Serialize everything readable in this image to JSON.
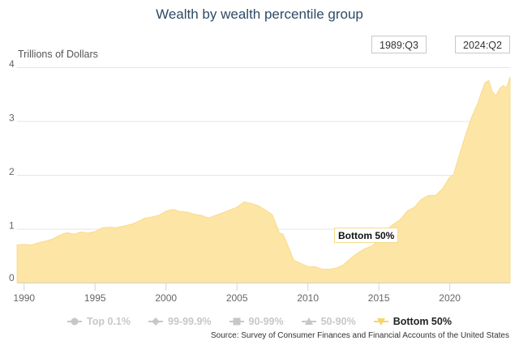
{
  "title": "Wealth by wealth percentile group",
  "range_selector": {
    "start": "1989:Q3",
    "end": "2024:Q2"
  },
  "annotation": "Bottom 50%",
  "legend": [
    {
      "label": "Top 0.1%",
      "icon": "circle-marker-icon",
      "active": false
    },
    {
      "label": "99-99.9%",
      "icon": "diamond-marker-icon",
      "active": false
    },
    {
      "label": "90-99%",
      "icon": "square-marker-icon",
      "active": false
    },
    {
      "label": "50-90%",
      "icon": "triangle-marker-icon",
      "active": false
    },
    {
      "label": "Bottom 50%",
      "icon": "triangle-down-marker-icon",
      "active": true
    }
  ],
  "source": "Source: Survey of Consumer Finances and Financial Accounts of the United States",
  "colors": {
    "area": "#fde5a6",
    "area_line": "#f9d77f",
    "grid": "#e6e6e6",
    "title": "#2e4a66",
    "inactive": "#c7c7c7"
  },
  "chart_data": {
    "type": "area",
    "title": "Wealth by wealth percentile group",
    "xlabel": "",
    "ylabel": "Trillions of Dollars",
    "ylim": [
      0,
      4
    ],
    "xlim": [
      1989.5,
      2024.25
    ],
    "yticks": [
      0,
      1,
      2,
      3,
      4
    ],
    "xticks": [
      1990,
      1995,
      2000,
      2005,
      2010,
      2015,
      2020
    ],
    "grid": true,
    "legend_position": "bottom",
    "series": [
      {
        "name": "Bottom 50%",
        "x": [
          1989.5,
          1990.0,
          1990.5,
          1991.0,
          1991.5,
          1992.0,
          1992.5,
          1993.0,
          1993.5,
          1994.0,
          1994.5,
          1995.0,
          1995.5,
          1996.0,
          1996.5,
          1997.0,
          1997.5,
          1998.0,
          1998.5,
          1999.0,
          1999.5,
          2000.0,
          2000.5,
          2001.0,
          2001.5,
          2002.0,
          2002.5,
          2003.0,
          2003.5,
          2004.0,
          2004.5,
          2005.0,
          2005.5,
          2006.0,
          2006.5,
          2007.0,
          2007.5,
          2008.0,
          2008.25,
          2008.5,
          2009.0,
          2009.5,
          2010.0,
          2010.5,
          2011.0,
          2011.5,
          2012.0,
          2012.5,
          2013.0,
          2013.5,
          2014.0,
          2014.5,
          2015.0,
          2015.5,
          2016.0,
          2016.5,
          2017.0,
          2017.5,
          2018.0,
          2018.5,
          2019.0,
          2019.5,
          2020.0,
          2020.25,
          2020.5,
          2021.0,
          2021.5,
          2022.0,
          2022.25,
          2022.5,
          2022.75,
          2023.0,
          2023.25,
          2023.5,
          2023.75,
          2024.0,
          2024.25
        ],
        "values": [
          0.7,
          0.71,
          0.7,
          0.74,
          0.77,
          0.81,
          0.88,
          0.93,
          0.9,
          0.94,
          0.92,
          0.95,
          1.02,
          1.03,
          1.02,
          1.05,
          1.08,
          1.13,
          1.2,
          1.22,
          1.25,
          1.33,
          1.36,
          1.32,
          1.31,
          1.27,
          1.25,
          1.2,
          1.25,
          1.3,
          1.35,
          1.4,
          1.5,
          1.47,
          1.43,
          1.35,
          1.26,
          0.92,
          0.9,
          0.75,
          0.42,
          0.36,
          0.3,
          0.3,
          0.25,
          0.25,
          0.27,
          0.33,
          0.45,
          0.55,
          0.63,
          0.68,
          0.8,
          0.98,
          1.08,
          1.17,
          1.33,
          1.4,
          1.55,
          1.62,
          1.62,
          1.75,
          1.96,
          2.0,
          2.22,
          2.65,
          3.05,
          3.35,
          3.55,
          3.72,
          3.75,
          3.55,
          3.47,
          3.6,
          3.66,
          3.62,
          3.82
        ]
      },
      {
        "name": "Top 0.1%",
        "hidden": true,
        "values": []
      },
      {
        "name": "99-99.9%",
        "hidden": true,
        "values": []
      },
      {
        "name": "90-99%",
        "hidden": true,
        "values": []
      },
      {
        "name": "50-90%",
        "hidden": true,
        "values": []
      }
    ]
  }
}
